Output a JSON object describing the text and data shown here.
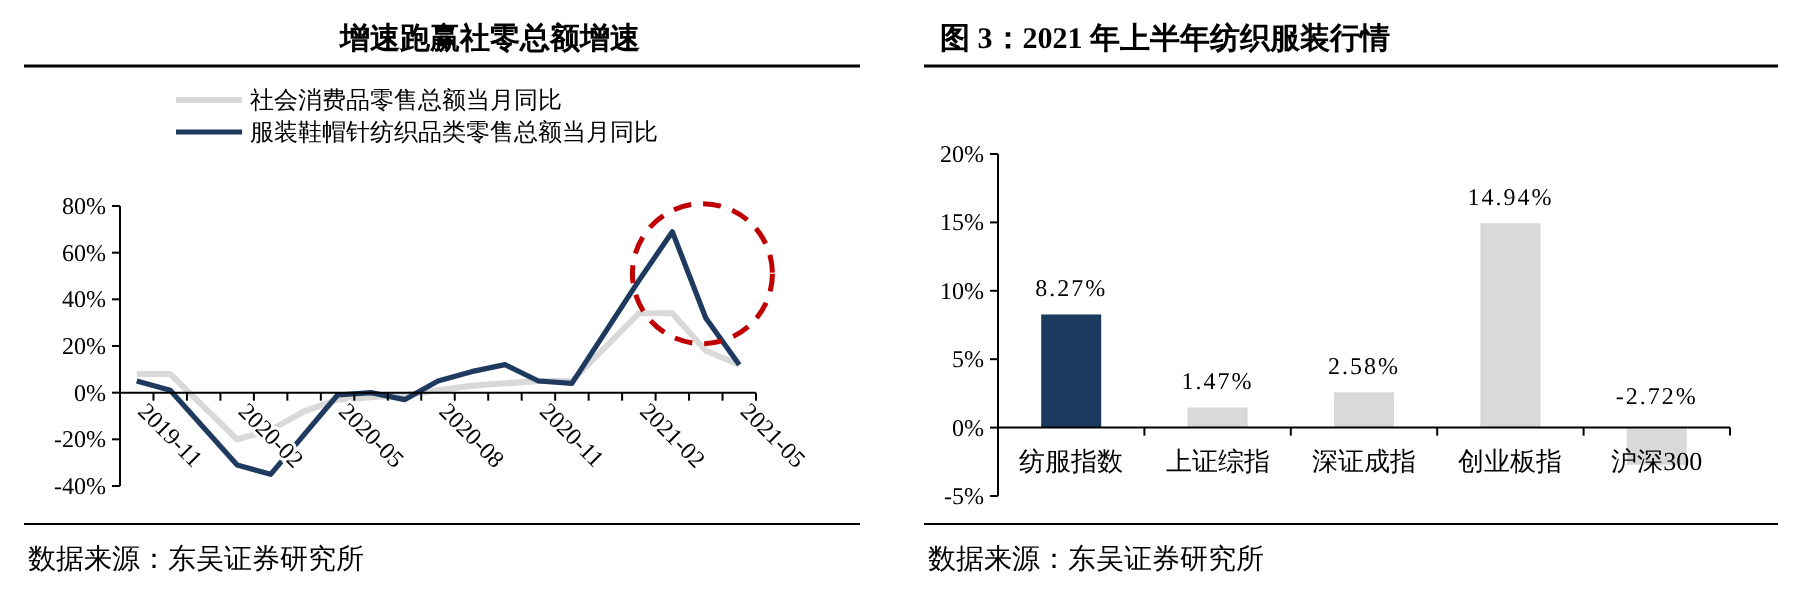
{
  "chart_data": [
    {
      "type": "line",
      "title": "增速跑赢社零总额增速",
      "categories": [
        "2019-11",
        null,
        null,
        "2020-02",
        null,
        null,
        "2020-05",
        null,
        null,
        "2020-08",
        null,
        null,
        "2020-11",
        null,
        null,
        "2021-02",
        null,
        null,
        "2021-05"
      ],
      "series": [
        {
          "name": "社会消费品零售总额当月同比",
          "color": "#d9d9d9",
          "values": [
            8,
            8,
            null,
            -20,
            -16,
            -8,
            -3,
            -2,
            -1,
            1,
            3,
            4,
            5,
            5,
            null,
            34,
            34,
            18,
            12
          ]
        },
        {
          "name": "服装鞋帽针纺织品类零售总额当月同比",
          "color": "#1f3a5f",
          "values": [
            5,
            1,
            null,
            -31,
            -35,
            -18,
            -1,
            0,
            -3,
            5,
            9,
            12,
            5,
            4,
            null,
            48,
            69,
            32,
            12
          ]
        }
      ],
      "ylim": [
        -40,
        80
      ],
      "yticks": [
        {
          "value": -40,
          "label": "-40%"
        },
        {
          "value": -20,
          "label": "-20%"
        },
        {
          "value": 0,
          "label": "0%"
        },
        {
          "value": 20,
          "label": "20%"
        },
        {
          "value": 40,
          "label": "40%"
        },
        {
          "value": 60,
          "label": "60%"
        },
        {
          "value": 80,
          "label": "80%"
        }
      ],
      "legend": "top",
      "annotations": [
        "数据来源：东吴证券研究所"
      ]
    },
    {
      "type": "bar",
      "title": "图 3：2021 年上半年纺织服装行情",
      "categories": [
        "纺服指数",
        "上证综指",
        "深证成指",
        "创业板指",
        "沪深300"
      ],
      "values": [
        8.27,
        1.47,
        2.58,
        14.94,
        -2.72
      ],
      "colors": [
        "#1c3a5e",
        "#d9d9d9",
        "#d9d9d9",
        "#d9d9d9",
        "#d9d9d9"
      ],
      "value_labels": [
        "8.27%",
        "1.47%",
        "2.58%",
        "14.94%",
        "-2.72%"
      ],
      "ylim": [
        -5,
        20
      ],
      "yticks": [
        {
          "value": -5,
          "label": "-5%"
        },
        {
          "value": 0,
          "label": "0%"
        },
        {
          "value": 5,
          "label": "5%"
        },
        {
          "value": 10,
          "label": "10%"
        },
        {
          "value": 15,
          "label": "15%"
        },
        {
          "value": 20,
          "label": "20%"
        }
      ],
      "annotations": [
        "数据来源：东吴证券研究所"
      ]
    }
  ]
}
